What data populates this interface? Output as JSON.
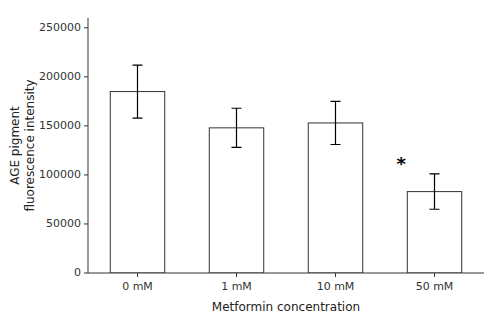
{
  "chart_data": {
    "type": "bar",
    "categories": [
      "0 mM",
      "1 mM",
      "10 mM",
      "50 mM"
    ],
    "values": [
      185000,
      148000,
      153000,
      83000
    ],
    "errors": [
      27000,
      20000,
      22000,
      18000
    ],
    "color": "#ffffff",
    "xlabel": "Metformin concentration",
    "ylabel": "AGE pigment\nfluorescence intensity",
    "ylim": [
      0,
      260000
    ],
    "yticks": [
      0,
      50000,
      100000,
      150000,
      200000,
      250000
    ],
    "grid": false,
    "annotations": [
      {
        "text": "*",
        "category": "50 mM"
      }
    ]
  }
}
